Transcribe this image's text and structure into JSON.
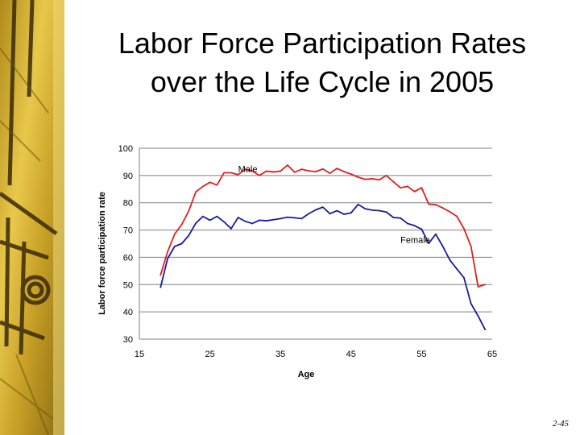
{
  "slide": {
    "title_line1": "Labor Force Participation Rates",
    "title_line2": "over the Life Cycle in 2005",
    "page_number": "2-45"
  },
  "chart_data": {
    "type": "line",
    "title": "Labor Force Participation Rates over the Life Cycle in 2005",
    "xlabel": "Age",
    "ylabel": "Labor force participation rate",
    "xlim": [
      15,
      65
    ],
    "ylim": [
      30,
      100
    ],
    "xticks": [
      15,
      25,
      35,
      45,
      55,
      65
    ],
    "yticks": [
      30,
      40,
      50,
      60,
      70,
      80,
      90,
      100
    ],
    "grid": "horizontal",
    "x": [
      18,
      19,
      20,
      21,
      22,
      23,
      24,
      25,
      26,
      27,
      28,
      29,
      30,
      31,
      32,
      33,
      34,
      35,
      36,
      37,
      38,
      39,
      40,
      41,
      42,
      43,
      44,
      45,
      46,
      47,
      48,
      49,
      50,
      51,
      52,
      53,
      54,
      55,
      56,
      57,
      58,
      59,
      60,
      61,
      62,
      63,
      64
    ],
    "series": [
      {
        "name": "Male",
        "color": "#e02020",
        "values": [
          53.5,
          62,
          68.5,
          72,
          77,
          84,
          86,
          87.5,
          86.5,
          91,
          91,
          90.3,
          92.3,
          91.7,
          90,
          91.6,
          91.3,
          91.6,
          93.8,
          91.2,
          92.3,
          91.7,
          91.4,
          92.4,
          90.8,
          92.6,
          91.4,
          90.5,
          89.4,
          88.6,
          88.8,
          88.4,
          90,
          87.7,
          85.5,
          86,
          84.1,
          85.5,
          79.5,
          79.3,
          78.1,
          76.7,
          75,
          70.5,
          64,
          49.2,
          50
        ]
      },
      {
        "name": "Female",
        "color": "#1a1aa0",
        "values": [
          49,
          59.5,
          64,
          65,
          68,
          72.5,
          75,
          73.6,
          75,
          73,
          70.5,
          74.6,
          73.2,
          72.4,
          73.6,
          73.4,
          73.8,
          74.2,
          74.7,
          74.5,
          74.2,
          76,
          77.4,
          78.4,
          76,
          77.1,
          75.8,
          76.3,
          79.4,
          77.8,
          77.3,
          77.1,
          76.6,
          74.6,
          74.4,
          72.4,
          71.6,
          70.3,
          65.1,
          68.5,
          64,
          59,
          55.7,
          52.5,
          43,
          38.5,
          33.5
        ]
      }
    ]
  },
  "colors": {
    "sidebar_base": "#c9a227",
    "sidebar_dark": "#3a2a08",
    "axis": "#808080",
    "grid": "#808080"
  }
}
